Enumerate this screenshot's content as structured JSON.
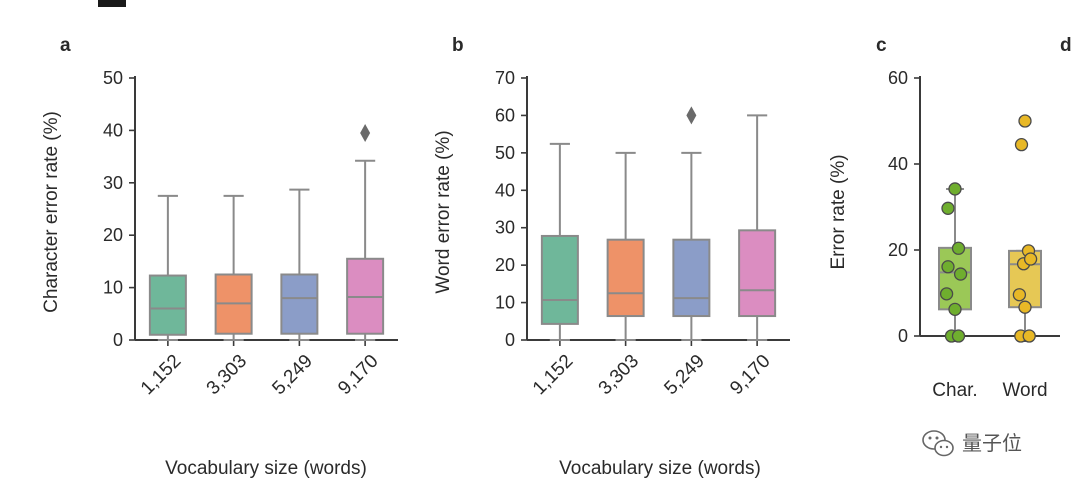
{
  "chart_data": [
    {
      "type": "box",
      "panel": "a",
      "categories": [
        "1,152",
        "3,303",
        "5,249",
        "9,170"
      ],
      "colors": [
        "#6fb79a",
        "#ee9268",
        "#8b9dc8",
        "#db8dc1"
      ],
      "boxes": [
        {
          "whisker_low": 0,
          "q1": 1,
          "median": 6,
          "q3": 12.3,
          "whisker_high": 27.5,
          "outliers": []
        },
        {
          "whisker_low": 0,
          "q1": 1.2,
          "median": 7,
          "q3": 12.5,
          "whisker_high": 27.5,
          "outliers": []
        },
        {
          "whisker_low": 0,
          "q1": 1.2,
          "median": 8,
          "q3": 12.5,
          "whisker_high": 28.7,
          "outliers": []
        },
        {
          "whisker_low": 0,
          "q1": 1.2,
          "median": 8.2,
          "q3": 15.5,
          "whisker_high": 34.2,
          "outliers": [
            39.5
          ]
        }
      ],
      "ylim": [
        0,
        50
      ],
      "yticks": [
        0,
        10,
        20,
        30,
        40,
        50
      ],
      "ylabel": "Character error rate (%)",
      "xlabel": "Vocabulary size (words)"
    },
    {
      "type": "box",
      "panel": "b",
      "categories": [
        "1,152",
        "3,303",
        "5,249",
        "9,170"
      ],
      "colors": [
        "#6fb79a",
        "#ee9268",
        "#8b9dc8",
        "#db8dc1"
      ],
      "boxes": [
        {
          "whisker_low": 0,
          "q1": 4.3,
          "median": 10.7,
          "q3": 27.8,
          "whisker_high": 52.4,
          "outliers": []
        },
        {
          "whisker_low": 0,
          "q1": 6.4,
          "median": 12.5,
          "q3": 26.8,
          "whisker_high": 50,
          "outliers": []
        },
        {
          "whisker_low": 0,
          "q1": 6.4,
          "median": 11.2,
          "q3": 26.8,
          "whisker_high": 50,
          "outliers": [
            60
          ]
        },
        {
          "whisker_low": 0,
          "q1": 6.4,
          "median": 13.3,
          "q3": 29.3,
          "whisker_high": 60,
          "outliers": []
        }
      ],
      "ylim": [
        0,
        70
      ],
      "yticks": [
        0,
        10,
        20,
        30,
        40,
        50,
        60,
        70
      ],
      "ylabel": "Word error rate (%)",
      "xlabel": "Vocabulary size (words)"
    },
    {
      "type": "box",
      "panel": "c",
      "categories": [
        "Char.",
        "Word"
      ],
      "colors": [
        "#9bc857",
        "#e6c855"
      ],
      "point_colors": [
        "#6fae2e",
        "#e8b826"
      ],
      "boxes": [
        {
          "whisker_low": 0,
          "q1": 6.2,
          "median": 14.8,
          "q3": 20.5,
          "whisker_high": 34.2,
          "outliers": []
        },
        {
          "whisker_low": 0,
          "q1": 6.7,
          "median": 16.7,
          "q3": 19.8,
          "whisker_high": 19.8,
          "outliers": [
            44.5,
            50
          ]
        }
      ],
      "points": [
        [
          {
            "x": 0.0,
            "y": 34.2
          },
          {
            "x": -0.1,
            "y": 29.7
          },
          {
            "x": 0.05,
            "y": 20.4
          },
          {
            "x": -0.1,
            "y": 16.1
          },
          {
            "x": 0.08,
            "y": 14.4
          },
          {
            "x": -0.12,
            "y": 9.8
          },
          {
            "x": 0.0,
            "y": 6.2
          },
          {
            "x": -0.05,
            "y": 0
          },
          {
            "x": 0.05,
            "y": 0
          }
        ],
        [
          {
            "x": 0.0,
            "y": 50
          },
          {
            "x": -0.05,
            "y": 44.5
          },
          {
            "x": 0.05,
            "y": 19.8
          },
          {
            "x": -0.02,
            "y": 16.8
          },
          {
            "x": 0.08,
            "y": 17.9
          },
          {
            "x": -0.08,
            "y": 9.6
          },
          {
            "x": 0.0,
            "y": 6.7
          },
          {
            "x": -0.06,
            "y": 0
          },
          {
            "x": 0.06,
            "y": 0
          }
        ]
      ],
      "ylim": [
        0,
        60
      ],
      "yticks": [
        0,
        20,
        40,
        60
      ],
      "ylabel": "Error rate (%)",
      "xlabel": ""
    }
  ],
  "panel_letters": [
    "a",
    "b",
    "c",
    "d"
  ],
  "watermark": {
    "text": "量子位",
    "icon": "wechat-icon"
  }
}
